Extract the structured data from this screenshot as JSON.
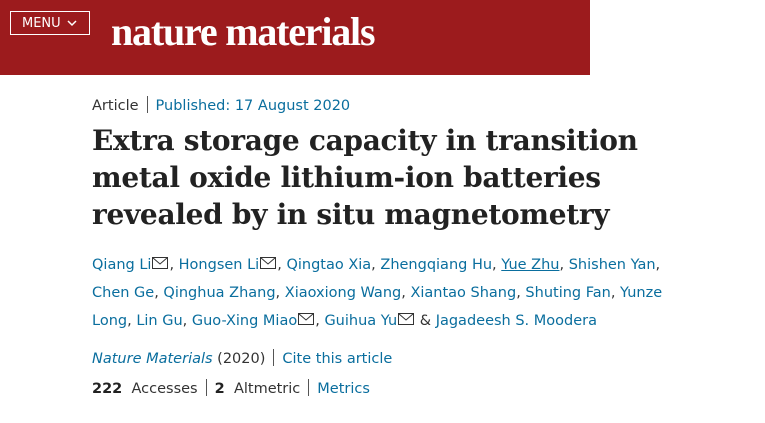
{
  "header": {
    "menu": "MENU",
    "logo": "nature materials"
  },
  "article": {
    "type": "Article",
    "published": "Published: 17 August 2020",
    "title": "Extra storage capacity in transition metal oxide lithium-ion batteries revealed by in situ magnetometry",
    "authors": [
      {
        "name": "Qiang Li",
        "email": true
      },
      {
        "name": "Hongsen Li",
        "email": true
      },
      {
        "name": "Qingtao Xia"
      },
      {
        "name": "Zhengqiang Hu"
      },
      {
        "name": "Yue Zhu",
        "underline": true
      },
      {
        "name": "Shishen Yan"
      },
      {
        "name": "Chen Ge"
      },
      {
        "name": "Qinghua Zhang"
      },
      {
        "name": "Xiaoxiong Wang"
      },
      {
        "name": "Xiantao Shang"
      },
      {
        "name": "Shuting Fan"
      },
      {
        "name": "Yunze Long"
      },
      {
        "name": "Lin Gu"
      },
      {
        "name": "Guo-Xing Miao",
        "email": true
      },
      {
        "name": "Guihua Yu",
        "email": true
      },
      {
        "name": "Jagadeesh S. Moodera"
      }
    ],
    "separator": ",",
    "conjunction": "&",
    "journal": "Nature Materials",
    "year": "(2020)",
    "cite": "Cite this article",
    "metrics": {
      "accesses": 222,
      "accesses_label": "Accesses",
      "altmetric": 2,
      "altmetric_label": "Altmetric",
      "link": "Metrics"
    }
  }
}
